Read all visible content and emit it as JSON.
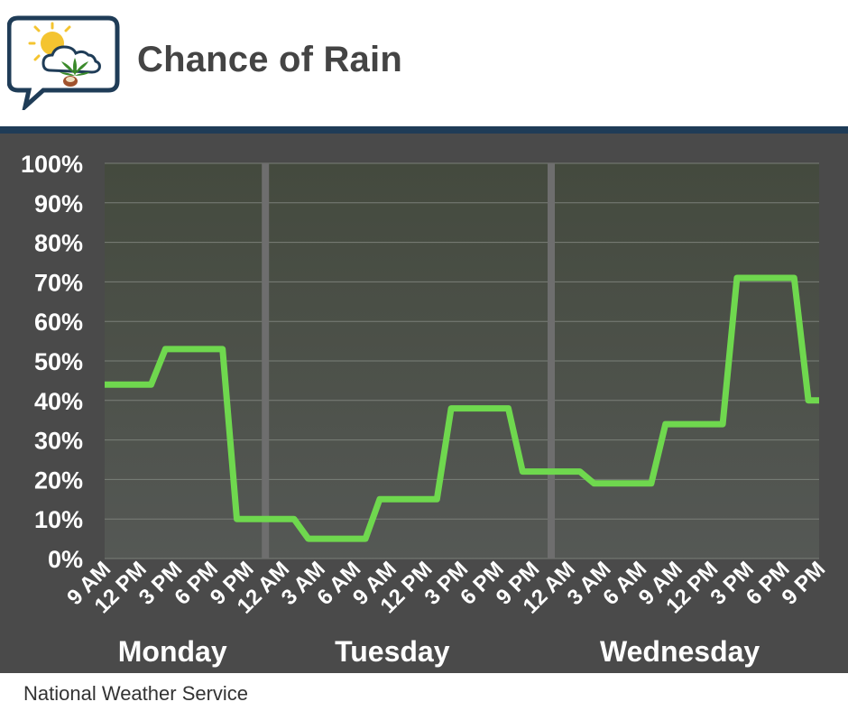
{
  "header": {
    "title": "Chance of Rain",
    "logo_icon": "weather-cannabis-chat-bubble-icon"
  },
  "footer": {
    "source": "National Weather Service"
  },
  "colors": {
    "line": "#6fd84e",
    "panel_bg": "#4a4a4a",
    "divider": "#1f3c57",
    "day_separator": "#6e6e6e"
  },
  "chart_data": {
    "type": "line",
    "title": "Chance of Rain",
    "xlabel": "",
    "ylabel": "",
    "ylim": [
      0,
      100
    ],
    "y_ticks": [
      "0%",
      "10%",
      "20%",
      "30%",
      "40%",
      "50%",
      "60%",
      "70%",
      "80%",
      "90%",
      "100%"
    ],
    "y_tick_values": [
      0,
      10,
      20,
      30,
      40,
      50,
      60,
      70,
      80,
      90,
      100
    ],
    "categories": [
      "9 AM",
      "12 PM",
      "3 PM",
      "6 PM",
      "9 PM",
      "12 AM",
      "3 AM",
      "6 AM",
      "9 AM",
      "12 PM",
      "3 PM",
      "6 PM",
      "9 PM",
      "12 AM",
      "3 AM",
      "6 AM",
      "9 AM",
      "12 PM",
      "3 PM",
      "6 PM",
      "9 PM"
    ],
    "day_labels": [
      "Monday",
      "Tuesday",
      "Wednesday"
    ],
    "day_separators_after_index": [
      4,
      12
    ],
    "grid": true,
    "step_line": true,
    "series": [
      {
        "values": [
          44,
          44,
          53,
          53,
          10,
          10,
          5,
          5,
          15,
          15,
          38,
          38,
          22,
          22,
          19,
          19,
          34,
          34,
          71,
          71,
          40
        ]
      }
    ]
  }
}
